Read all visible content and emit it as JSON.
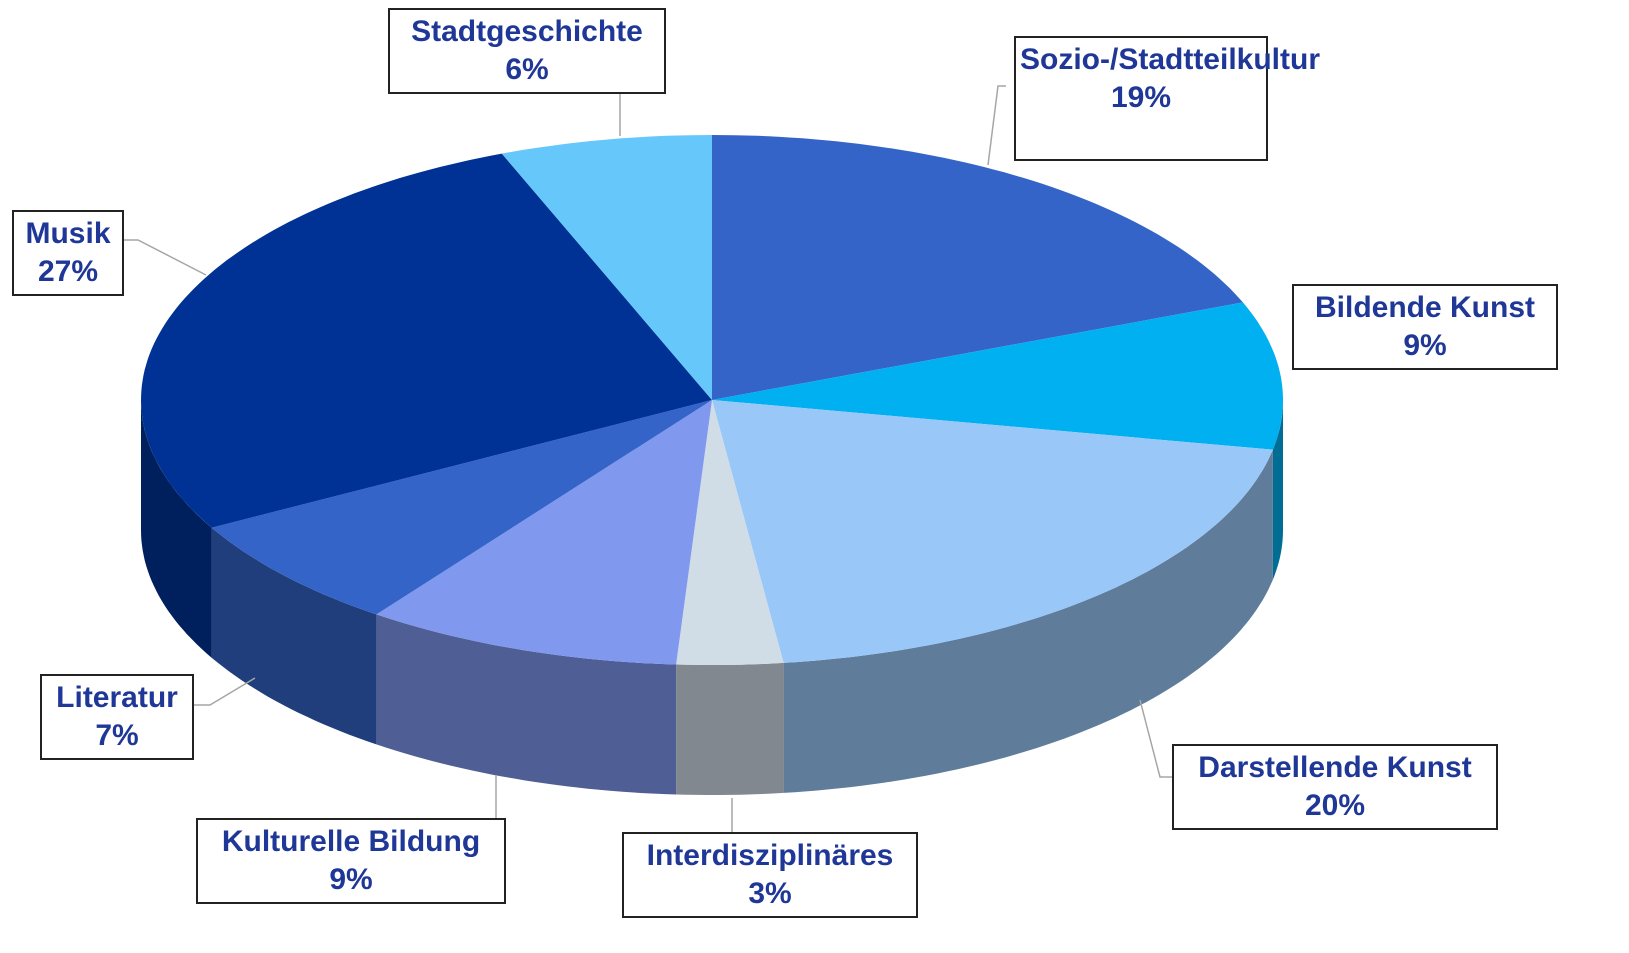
{
  "chart_data": {
    "type": "pie3d",
    "categories": [
      "Sozio-/Stadtteilkultur",
      "Bildende Kunst",
      "Darstellende Kunst",
      "Interdisziplinäres",
      "Kulturelle Bildung",
      "Literatur",
      "Musik",
      "Stadtgeschichte"
    ],
    "values": [
      19,
      9,
      20,
      3,
      9,
      7,
      27,
      6
    ],
    "value_labels": [
      "19%",
      "9%",
      "20%",
      "3%",
      "9%",
      "7%",
      "27%",
      "6%"
    ],
    "colors": [
      "#3464c8",
      "#00b0f0",
      "#99c8f8",
      "#d0dce6",
      "#8098ee",
      "#3464c8",
      "#003296",
      "#66c8fa"
    ]
  }
}
